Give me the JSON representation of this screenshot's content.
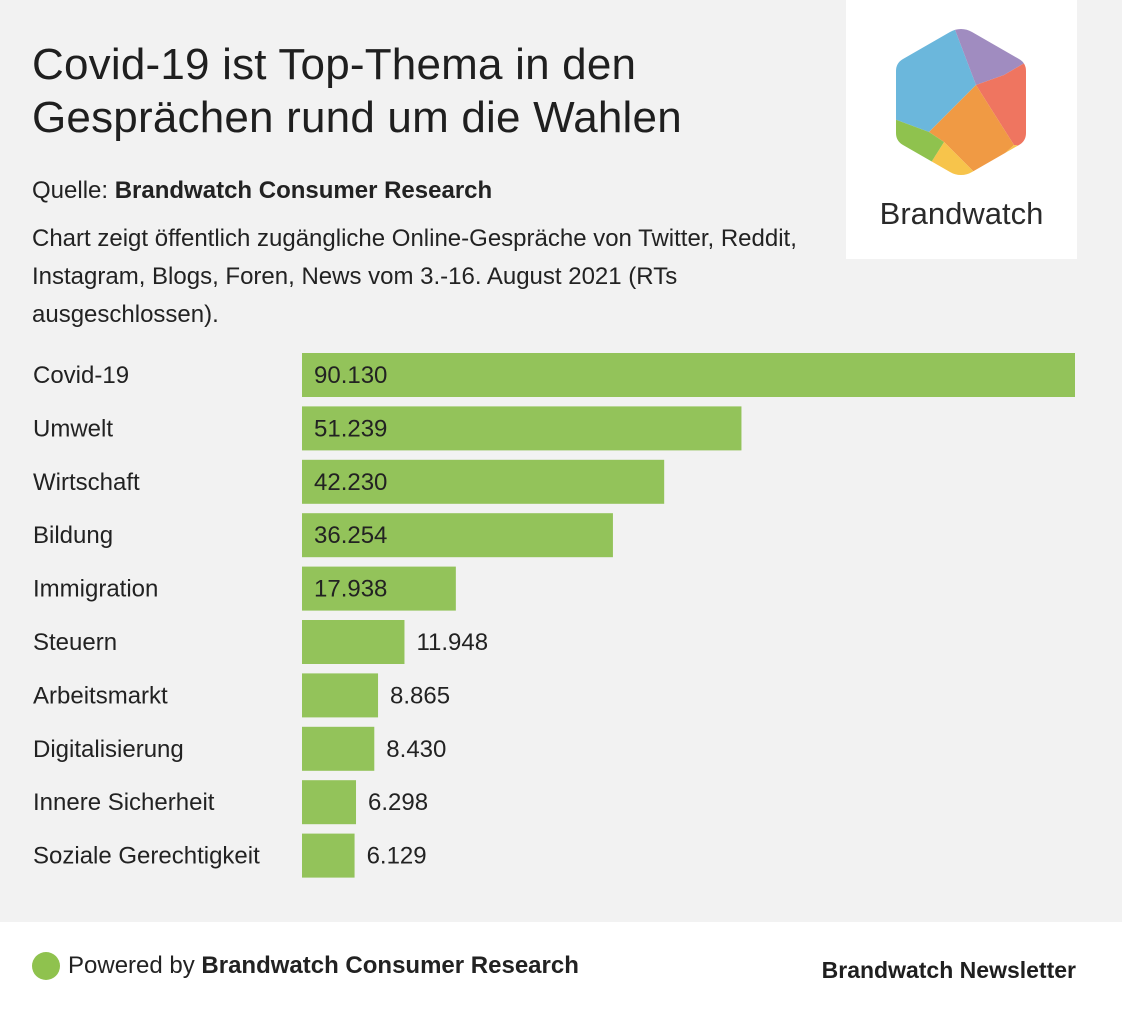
{
  "header": {
    "title": "Covid-19 ist Top-Thema in den Gesprächen rund um die Wahlen",
    "source_prefix": "Quelle: ",
    "source_name": "Brandwatch Consumer Research",
    "description": "Chart zeigt öffentlich zugängliche Online-Gespräche von Twitter, Reddit, Instagram, Blogs, Foren, News vom 3.-16. August 2021 (RTs ausgeschlossen)."
  },
  "logo": {
    "text": "Brandwatch",
    "colors": [
      "#6bb7dc",
      "#a08cc0",
      "#ef7560",
      "#f09a44",
      "#f7c44b",
      "#8fc24e"
    ]
  },
  "chart_data": {
    "type": "bar",
    "orientation": "horizontal",
    "categories": [
      "Covid-19",
      "Umwelt",
      "Wirtschaft",
      "Bildung",
      "Immigration",
      "Steuern",
      "Arbeitsmarkt",
      "Digitalisierung",
      "Innere Sicherheit",
      "Soziale Gerechtigkeit"
    ],
    "values": [
      90130,
      51239,
      42230,
      36254,
      17938,
      11948,
      8865,
      8430,
      6298,
      6129
    ],
    "value_labels": [
      "90.130",
      "51.239",
      "42.230",
      "36.254",
      "17.938",
      "11.948",
      "8.865",
      "8.430",
      "6.298",
      "6.129"
    ],
    "xlim": [
      0,
      90130
    ],
    "bar_color": "#93c35a",
    "grid": false
  },
  "footer": {
    "powered_prefix": "Powered by ",
    "powered_name": "Brandwatch Consumer Research",
    "newsletter": "Brandwatch Newsletter",
    "dot_color": "#8fc24e"
  }
}
